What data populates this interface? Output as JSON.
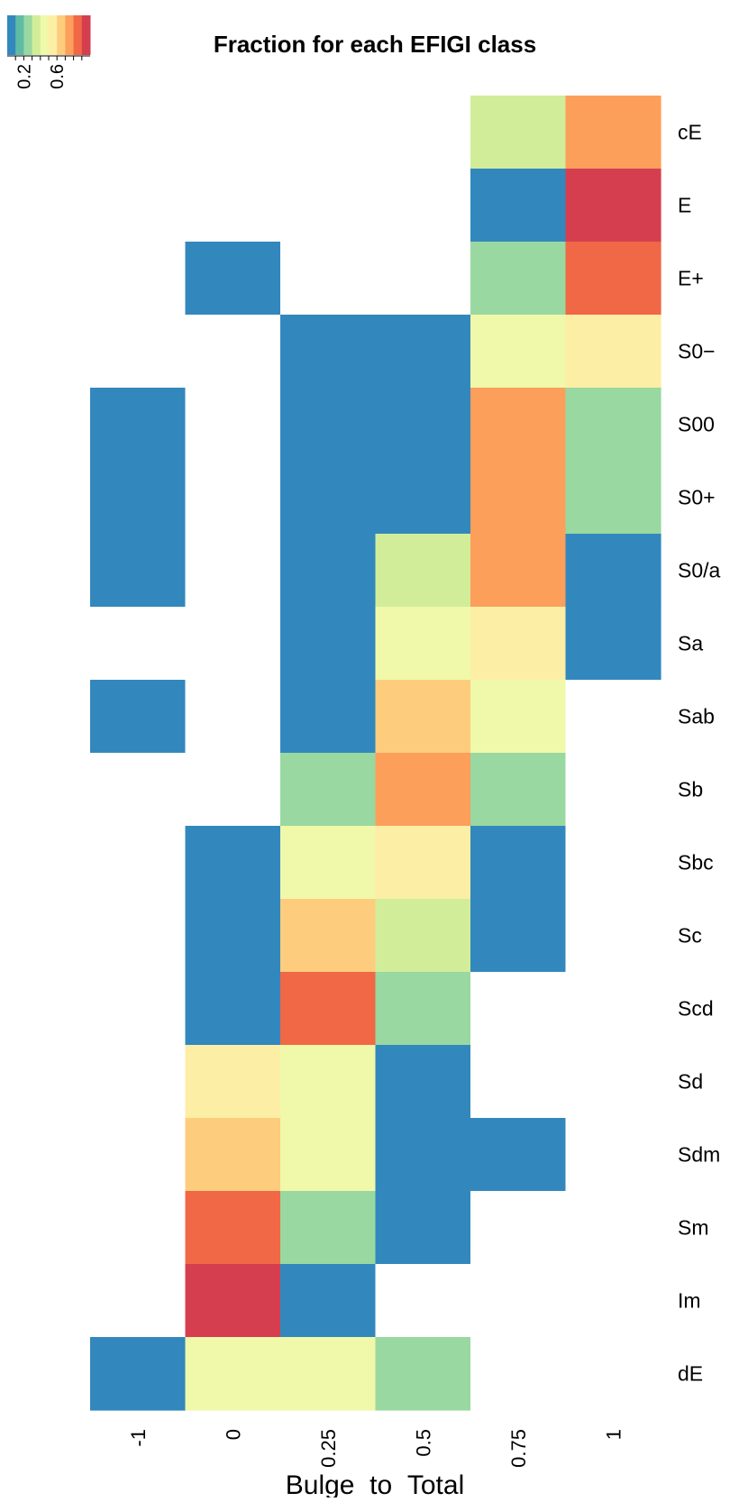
{
  "chart_data": {
    "type": "heatmap",
    "title": "Fraction for each EFIGI class",
    "xlabel": "Bulge_to_Total",
    "ylabel": "",
    "columns": [
      "-1",
      "0",
      "0.25",
      "0.5",
      "0.75",
      "1"
    ],
    "rows": [
      "cE",
      "E",
      "E+",
      "S0−",
      "S00",
      "S0+",
      "S0/a",
      "Sa",
      "Sab",
      "Sb",
      "Sbc",
      "Sc",
      "Scd",
      "Sd",
      "Sdm",
      "Sm",
      "Im",
      "dE"
    ],
    "values": [
      [
        null,
        null,
        null,
        null,
        0.3,
        0.7
      ],
      [
        null,
        null,
        null,
        null,
        0.05,
        0.9
      ],
      [
        null,
        0.05,
        null,
        null,
        0.2,
        0.8
      ],
      [
        null,
        null,
        0.05,
        0.05,
        0.4,
        0.5
      ],
      [
        0.05,
        null,
        0.05,
        0.05,
        0.7,
        0.2
      ],
      [
        0.05,
        null,
        0.05,
        0.05,
        0.7,
        0.2
      ],
      [
        0.05,
        null,
        0.05,
        0.3,
        0.7,
        0.05
      ],
      [
        null,
        null,
        0.05,
        0.45,
        0.5,
        0.05
      ],
      [
        0.05,
        null,
        0.05,
        0.6,
        0.4,
        null
      ],
      [
        null,
        null,
        0.2,
        0.7,
        0.2,
        null
      ],
      [
        null,
        0.05,
        0.45,
        0.5,
        0.05,
        null
      ],
      [
        null,
        0.05,
        0.6,
        0.3,
        0.05,
        null
      ],
      [
        null,
        0.05,
        0.8,
        0.2,
        null,
        null
      ],
      [
        null,
        0.5,
        0.45,
        0.05,
        null,
        null
      ],
      [
        null,
        0.6,
        0.4,
        0.05,
        0.05,
        null
      ],
      [
        null,
        0.8,
        0.2,
        0.05,
        null,
        null
      ],
      [
        null,
        0.9,
        0.05,
        null,
        null,
        null
      ],
      [
        0.05,
        0.45,
        0.4,
        0.2,
        null,
        null
      ]
    ],
    "colorbar": {
      "min": 0.0,
      "max": 1.0,
      "ticks": [
        0.2,
        0.6
      ],
      "tick_labels": [
        "0.2",
        "0.6"
      ],
      "palette": [
        "#3288bd",
        "#5fbba6",
        "#99d8a0",
        "#d2ed9a",
        "#f0f8aa",
        "#fdeea5",
        "#fdcd7d",
        "#fc9f5b",
        "#f06845",
        "#d53e4f"
      ],
      "placement": "top-left"
    },
    "grid": false,
    "missing_color": "#ffffff"
  }
}
